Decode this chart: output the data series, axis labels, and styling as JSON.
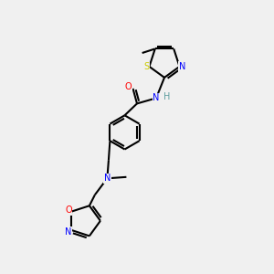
{
  "bg_color": "#f0f0f0",
  "atom_colors": {
    "N": "#0000ff",
    "O": "#ff0000",
    "S": "#cccc00",
    "H_color": "#5f9ea0"
  },
  "bond_color": "#000000",
  "bond_lw": 1.5,
  "figsize": [
    3.0,
    3.0
  ],
  "dpi": 100
}
